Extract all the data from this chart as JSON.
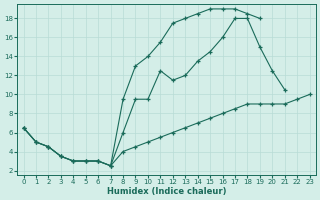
{
  "xlabel": "Humidex (Indice chaleur)",
  "bg_color": "#d4eee8",
  "line_color": "#1a6b5a",
  "grid_color": "#b8dcd6",
  "xlim": [
    -0.5,
    23.5
  ],
  "ylim": [
    1.5,
    19.5
  ],
  "xticks": [
    0,
    1,
    2,
    3,
    4,
    5,
    6,
    7,
    8,
    9,
    10,
    11,
    12,
    13,
    14,
    15,
    16,
    17,
    18,
    19,
    20,
    21,
    22,
    23
  ],
  "yticks": [
    2,
    4,
    6,
    8,
    10,
    12,
    14,
    16,
    18
  ],
  "top_x": [
    0,
    1,
    2,
    3,
    4,
    5,
    6,
    7,
    8,
    9,
    10,
    11,
    12,
    13,
    14,
    15,
    16,
    17,
    18,
    19
  ],
  "top_y": [
    6.5,
    5,
    4.5,
    3.5,
    3,
    3,
    3,
    2.5,
    9.5,
    13,
    14,
    15.5,
    17.5,
    18,
    18.5,
    19,
    19,
    19,
    18.5,
    18
  ],
  "mid_x": [
    0,
    1,
    2,
    3,
    4,
    5,
    6,
    7,
    8,
    9,
    10,
    11,
    12,
    13,
    14,
    15,
    16,
    17,
    18,
    19,
    20,
    21
  ],
  "mid_y": [
    6.5,
    5,
    4.5,
    3.5,
    3,
    3,
    3,
    2.5,
    6,
    9.5,
    9.5,
    12.5,
    11.5,
    12,
    13.5,
    14.5,
    16,
    18,
    18,
    15,
    12.5,
    10.5
  ],
  "bot_x": [
    0,
    1,
    2,
    3,
    4,
    5,
    6,
    7,
    8,
    9,
    10,
    11,
    12,
    13,
    14,
    15,
    16,
    17,
    18,
    19,
    20,
    21,
    22,
    23
  ],
  "bot_y": [
    6.5,
    5,
    4.5,
    3.5,
    3,
    3,
    3,
    2.5,
    4,
    4.5,
    5,
    5.5,
    6,
    6.5,
    7,
    7.5,
    8,
    8.5,
    9,
    9,
    9,
    9,
    9.5,
    10
  ]
}
